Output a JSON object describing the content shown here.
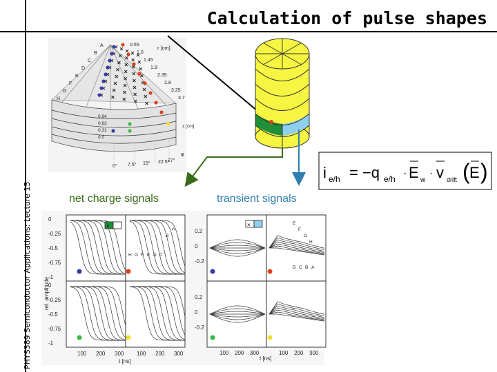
{
  "slide": {
    "title": "Calculation of pulse shapes",
    "side_label": "PHYS389 Semiconductor Applications: Lecture 15"
  },
  "colors": {
    "net_charge": "#3a6b1a",
    "transient": "#2e7fb0",
    "dot_blue": "#3a3aa0",
    "dot_red": "#e0401a",
    "dot_green": "#3cb843",
    "dot_yellow": "#f2e02a",
    "detector_yellow": "#f5f542",
    "segment_green": "#1f8f3a",
    "segment_blue": "#8fd0f0"
  },
  "labels": {
    "net_charge": "net charge signals",
    "transient": "transient signals"
  },
  "detector_figure": {
    "r_unit": "r [cm]",
    "r_values": [
      "0.55",
      "1.0",
      "1.45",
      "1.9",
      "2.35",
      "2.8",
      "3.25",
      "3.7"
    ],
    "row_letters": [
      "A",
      "B",
      "C",
      "D",
      "E",
      "F",
      "G",
      "H"
    ],
    "z_values": [
      "0.94",
      "0.63",
      "0.31",
      "0.0"
    ],
    "z_unit": "z [cm]",
    "angle_values": [
      "0°",
      "7.5°",
      "15°",
      "22.5°",
      "27°"
    ],
    "phi_symbol": "φ"
  },
  "formula": {
    "lhs": "i",
    "lhs_sub": "e/h",
    "eq": "= −q",
    "q_sub": "e/h",
    "dot1": "·",
    "ew": "E",
    "ew_sub": "w",
    "dot2": "·",
    "v": "v",
    "v_sub": "drift",
    "arg": "E"
  },
  "net_panels": {
    "y_ticks_top": [
      "0",
      "-0.25",
      "-0.5",
      "-0.75",
      "-1"
    ],
    "y_ticks_bottom": [
      "0",
      "-0.25",
      "-0.5",
      "-0.75",
      "-1"
    ],
    "x_ticks": [
      "100",
      "200",
      "300",
      "100",
      "200",
      "300"
    ],
    "y_axis_label": "rel. amplitude",
    "x_axis_label": "t [ns]",
    "curve_letters": [
      "H",
      "G",
      "F",
      "E",
      "D",
      "C",
      "B",
      "A"
    ]
  },
  "transient_panels": {
    "y_ticks_top": [
      "0.2",
      "0",
      "-0.2"
    ],
    "y_ticks_bottom": [
      "0.2",
      "0",
      "-0.2"
    ],
    "x_ticks": [
      "100",
      "200",
      "300",
      "100",
      "200",
      "300"
    ],
    "x_axis_label": "t [ns]",
    "curve_letters": [
      "E",
      "F",
      "G",
      "H",
      "D",
      "C",
      "B",
      "A"
    ]
  }
}
